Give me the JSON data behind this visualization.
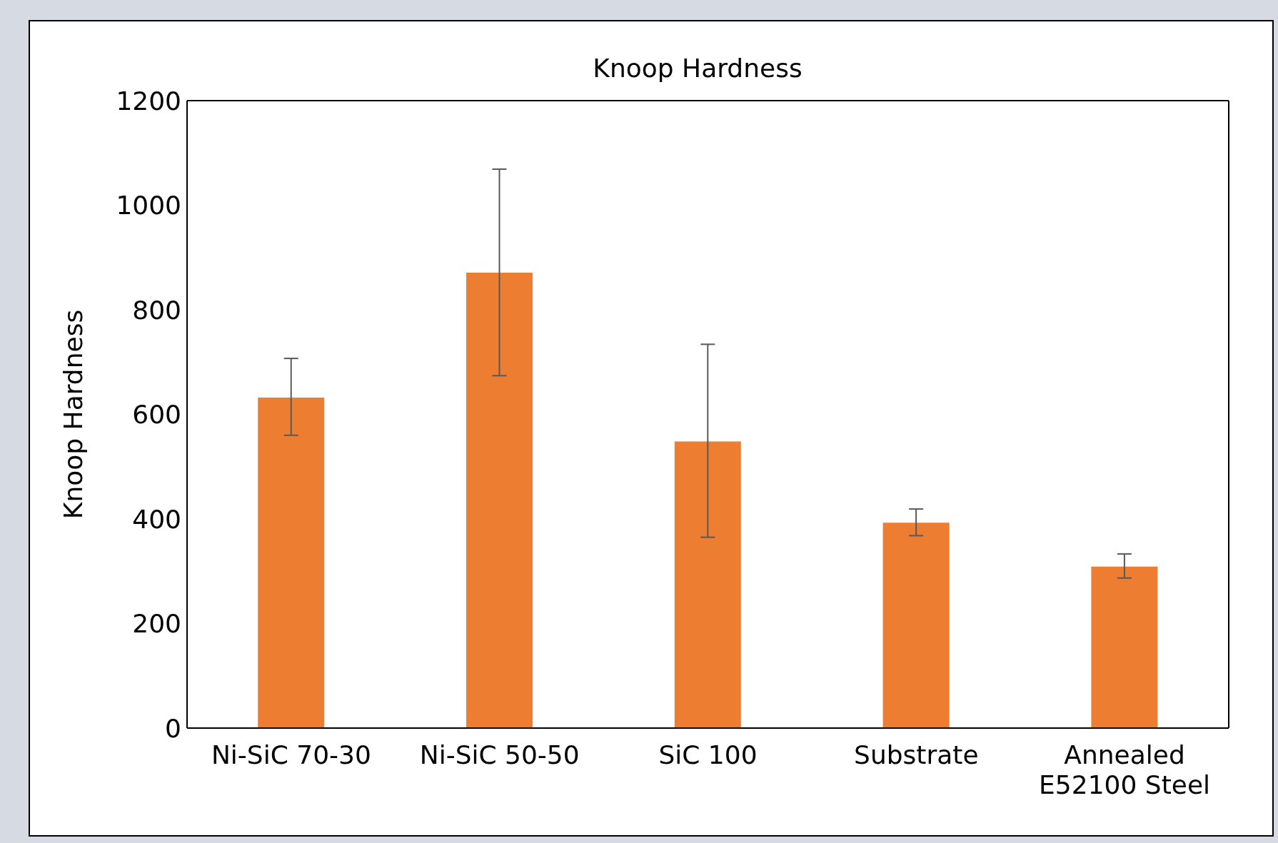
{
  "chart_data": {
    "type": "bar",
    "title": "Knoop Hardness",
    "ylabel": "Knoop Hardness",
    "categories": [
      "Ni-SiC 70-30",
      "Ni-SiC 50-50",
      "SiC 100",
      "Substrate",
      "Annealed E52100 Steel"
    ],
    "values": [
      632,
      871,
      548,
      393,
      309
    ],
    "errors": [
      [
        560,
        707
      ],
      [
        674,
        1069
      ],
      [
        365,
        734
      ],
      [
        368,
        419
      ],
      [
        287,
        333
      ]
    ],
    "color": "#ed7d31",
    "ylim": [
      0,
      1200
    ],
    "yticks": [
      0,
      200,
      400,
      600,
      800,
      1000,
      1200
    ]
  }
}
